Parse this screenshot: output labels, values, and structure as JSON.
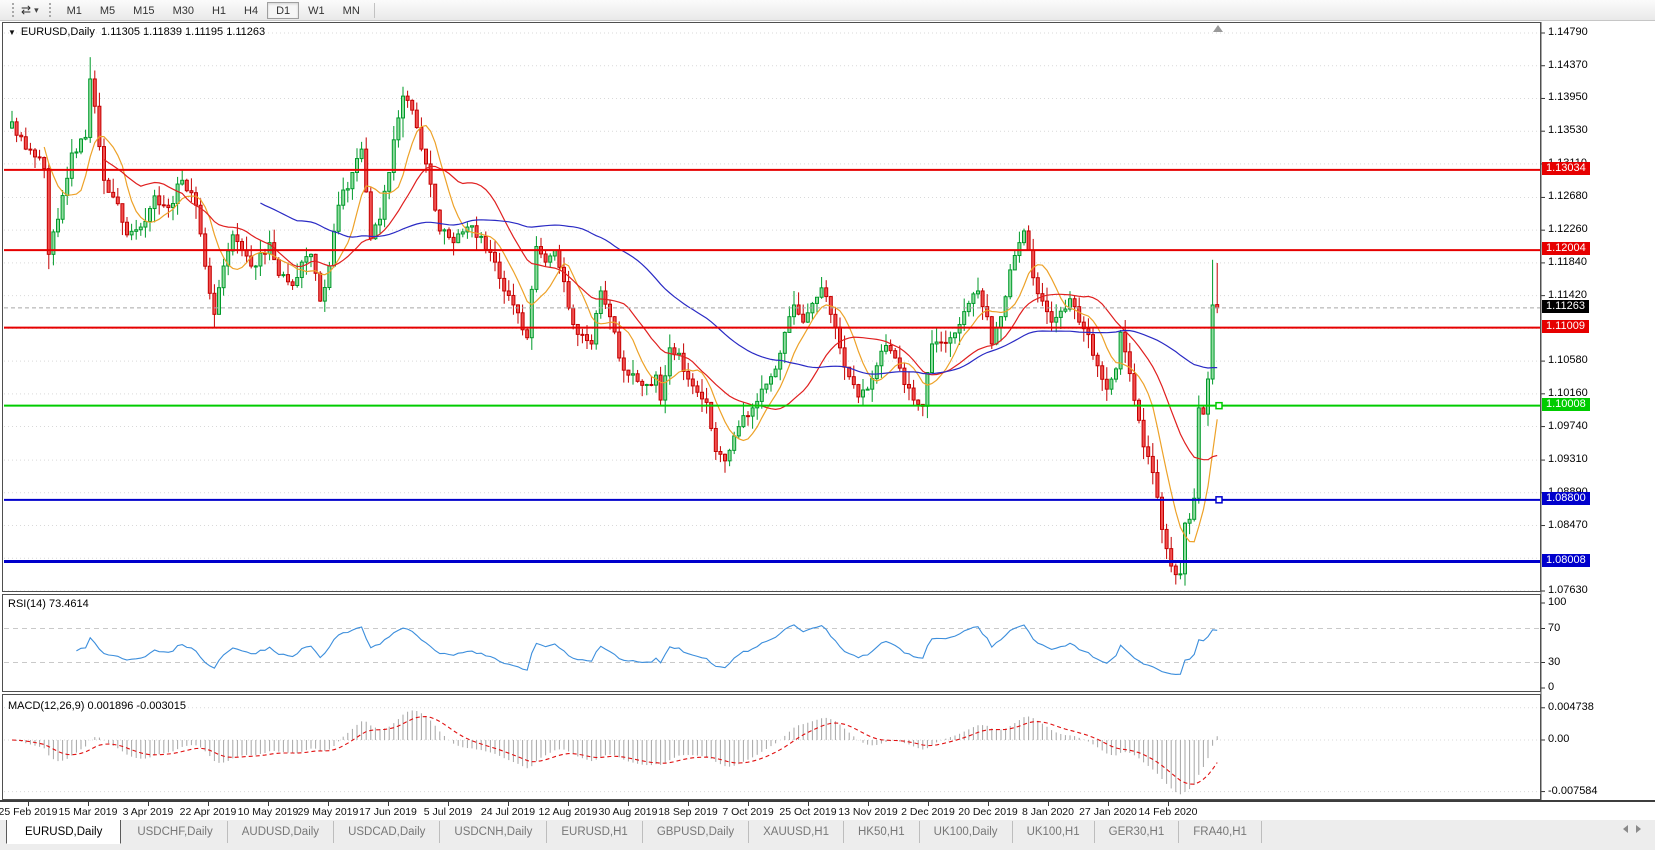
{
  "toolbar": {
    "timeframes": [
      "M1",
      "M5",
      "M15",
      "M30",
      "H1",
      "H4",
      "D1",
      "W1",
      "MN"
    ],
    "active_timeframe": "D1",
    "chart_mode_glyph": "⇄",
    "caret_glyph": "▾"
  },
  "chart": {
    "collapse_glyph": "▼",
    "title_symbol": "EURUSD,Daily",
    "title_ohlc": "1.11305 1.11839 1.11195 1.11263",
    "y_max": 1.1479,
    "y_min": 1.0763,
    "y_ticks": [
      "1.14790",
      "1.14370",
      "1.13950",
      "1.13530",
      "1.13110",
      "1.12680",
      "1.12260",
      "1.11840",
      "1.11420",
      "1.10580",
      "1.10160",
      "1.09740",
      "1.09310",
      "1.08890",
      "1.08470",
      "1.07630"
    ],
    "grid_prices": [
      1.1479,
      1.1437,
      1.1395,
      1.1353,
      1.1311,
      1.1268,
      1.1226,
      1.1184,
      1.1142,
      1.11,
      1.1058,
      1.1016,
      1.0974,
      1.0931,
      1.0889,
      1.0847,
      1.0805,
      1.0763
    ],
    "hlines": [
      {
        "price": 1.13034,
        "label": "1.13034",
        "color": "#e60000",
        "width": 2,
        "dash": null,
        "label_bg": "#e60000",
        "label_fg": "#ffffff",
        "marker": false
      },
      {
        "price": 1.12004,
        "label": "1.12004",
        "color": "#e60000",
        "width": 2,
        "dash": null,
        "label_bg": "#e60000",
        "label_fg": "#ffffff",
        "marker": false
      },
      {
        "price": 1.11263,
        "label": "1.11263",
        "color": "#a8a8a8",
        "width": 1,
        "dash": "4 3",
        "label_bg": "#000000",
        "label_fg": "#ffffff",
        "marker": false
      },
      {
        "price": 1.11009,
        "label": "1.11009",
        "color": "#e60000",
        "width": 2,
        "dash": null,
        "label_bg": "#e60000",
        "label_fg": "#ffffff",
        "marker": false
      },
      {
        "price": 1.10008,
        "label": "1.10008",
        "color": "#00cc00",
        "width": 2,
        "dash": null,
        "label_bg": "#00cc00",
        "label_fg": "#ffffff",
        "marker": true
      },
      {
        "price": 1.088,
        "label": "1.08800",
        "color": "#0000cc",
        "width": 2,
        "dash": null,
        "label_bg": "#0000cc",
        "label_fg": "#ffffff",
        "marker": true
      },
      {
        "price": 1.08008,
        "label": "1.08008",
        "color": "#0000cc",
        "width": 3,
        "dash": null,
        "label_bg": "#0000cc",
        "label_fg": "#ffffff",
        "marker": false
      }
    ],
    "x_labels": [
      "25 Feb 2019",
      "15 Mar 2019",
      "3 Apr 2019",
      "22 Apr 2019",
      "10 May 2019",
      "29 May 2019",
      "17 Jun 2019",
      "5 Jul 2019",
      "24 Jul 2019",
      "12 Aug 2019",
      "30 Aug 2019",
      "18 Sep 2019",
      "7 Oct 2019",
      "25 Oct 2019",
      "13 Nov 2019",
      "2 Dec 2019",
      "20 Dec 2019",
      "8 Jan 2020",
      "27 Jan 2020",
      "14 Feb 2020"
    ],
    "colors": {
      "grid": "#d9d9d9",
      "up_stroke": "#009a2a",
      "up_fill": "#8fdc9f",
      "down_stroke": "#c40000",
      "down_fill": "#f25050",
      "ma_fast": "#eda229",
      "ma_mid": "#e02020",
      "ma_slow": "#2a2ac4"
    }
  },
  "rsi": {
    "label": "RSI(14) 73.4614",
    "period": 14,
    "value": 73.4614,
    "ticks": [
      {
        "v": 100,
        "t": "100"
      },
      {
        "v": 70,
        "t": "70"
      },
      {
        "v": 30,
        "t": "30"
      },
      {
        "v": 0,
        "t": "0"
      }
    ],
    "levels": [
      70,
      30
    ],
    "line_color": "#3c8edc",
    "level_color": "#c9c9c9"
  },
  "macd": {
    "label": "MACD(12,26,9) 0.001896 -0.003015",
    "fast": 12,
    "slow": 26,
    "signal": 9,
    "value_main": 0.001896,
    "value_signal": -0.003015,
    "ticks": [
      {
        "v": 0.004738,
        "t": "0.004738"
      },
      {
        "v": 0,
        "t": "0.00"
      },
      {
        "v": -0.007584,
        "t": "-0.007584"
      }
    ],
    "hist_color": "#a6a6a6",
    "signal_color": "#e01010"
  },
  "tabs": {
    "items": [
      "EURUSD,Daily",
      "USDCHF,Daily",
      "AUDUSD,Daily",
      "USDCAD,Daily",
      "USDCNH,Daily",
      "EURUSD,H1",
      "GBPUSD,Daily",
      "XAUUSD,H1",
      "HK50,H1",
      "UK100,Daily",
      "UK100,H1",
      "GER30,H1",
      "FRA40,H1"
    ],
    "active": "EURUSD,Daily"
  },
  "chart_data": {
    "type": "candlestick",
    "symbol": "EURUSD",
    "timeframe": "Daily",
    "bars": 263,
    "x_range_labels": [
      "25 Feb 2019",
      "14 Feb 2020"
    ],
    "y_axis_range": [
      1.0763,
      1.1479
    ],
    "current_bar": {
      "open": 1.11305,
      "high": 1.11839,
      "low": 1.11195,
      "close": 1.11263
    },
    "levels": [
      1.13034,
      1.12004,
      1.11009,
      1.10008,
      1.088,
      1.08008
    ],
    "close_anchors": [
      [
        0,
        1.1365
      ],
      [
        3,
        1.133
      ],
      [
        5,
        1.132
      ],
      [
        7,
        1.1305
      ],
      [
        8,
        1.1195
      ],
      [
        10,
        1.124
      ],
      [
        13,
        1.1325
      ],
      [
        16,
        1.1345
      ],
      [
        17,
        1.142
      ],
      [
        18,
        1.1385
      ],
      [
        20,
        1.129
      ],
      [
        23,
        1.126
      ],
      [
        25,
        1.122
      ],
      [
        28,
        1.123
      ],
      [
        31,
        1.127
      ],
      [
        34,
        1.1255
      ],
      [
        37,
        1.129
      ],
      [
        40,
        1.1258
      ],
      [
        43,
        1.1145
      ],
      [
        44,
        1.1118
      ],
      [
        46,
        1.118
      ],
      [
        48,
        1.122
      ],
      [
        50,
        1.12
      ],
      [
        53,
        1.118
      ],
      [
        56,
        1.121
      ],
      [
        58,
        1.1168
      ],
      [
        61,
        1.1155
      ],
      [
        63,
        1.1185
      ],
      [
        65,
        1.1195
      ],
      [
        67,
        1.1135
      ],
      [
        69,
        1.118
      ],
      [
        71,
        1.1258
      ],
      [
        74,
        1.13
      ],
      [
        76,
        1.133
      ],
      [
        78,
        1.1215
      ],
      [
        80,
        1.124
      ],
      [
        82,
        1.13
      ],
      [
        84,
        1.137
      ],
      [
        85,
        1.1398
      ],
      [
        87,
        1.138
      ],
      [
        89,
        1.133
      ],
      [
        91,
        1.1285
      ],
      [
        93,
        1.1225
      ],
      [
        96,
        1.121
      ],
      [
        99,
        1.123
      ],
      [
        102,
        1.1218
      ],
      [
        105,
        1.1185
      ],
      [
        107,
        1.1148
      ],
      [
        110,
        1.112
      ],
      [
        112,
        1.1088
      ],
      [
        113,
        1.115
      ],
      [
        114,
        1.1205
      ],
      [
        116,
        1.1185
      ],
      [
        118,
        1.12
      ],
      [
        120,
        1.116
      ],
      [
        122,
        1.1105
      ],
      [
        124,
        1.1092
      ],
      [
        126,
        1.108
      ],
      [
        128,
        1.1148
      ],
      [
        130,
        1.1115
      ],
      [
        132,
        1.1062
      ],
      [
        134,
        1.104
      ],
      [
        136,
        1.1032
      ],
      [
        138,
        1.1028
      ],
      [
        140,
        1.104
      ],
      [
        141,
        1.1008
      ],
      [
        143,
        1.1075
      ],
      [
        145,
        1.1068
      ],
      [
        147,
        1.1035
      ],
      [
        149,
        1.1018
      ],
      [
        151,
        1.1005
      ],
      [
        153,
        1.0942
      ],
      [
        155,
        1.093
      ],
      [
        157,
        1.0962
      ],
      [
        159,
        1.0988
      ],
      [
        161,
        1.0998
      ],
      [
        163,
        1.1022
      ],
      [
        165,
        1.1038
      ],
      [
        167,
        1.1068
      ],
      [
        169,
        1.1115
      ],
      [
        170,
        1.113
      ],
      [
        172,
        1.1108
      ],
      [
        174,
        1.1132
      ],
      [
        176,
        1.1152
      ],
      [
        178,
        1.1118
      ],
      [
        180,
        1.1075
      ],
      [
        182,
        1.1038
      ],
      [
        184,
        1.1012
      ],
      [
        186,
        1.1022
      ],
      [
        188,
        1.1052
      ],
      [
        190,
        1.1078
      ],
      [
        192,
        1.1062
      ],
      [
        194,
        1.1028
      ],
      [
        196,
        1.1008
      ],
      [
        198,
        1.1
      ],
      [
        200,
        1.108
      ],
      [
        202,
        1.1082
      ],
      [
        204,
        1.1088
      ],
      [
        206,
        1.1105
      ],
      [
        208,
        1.1132
      ],
      [
        210,
        1.1148
      ],
      [
        212,
        1.1115
      ],
      [
        213,
        1.108
      ],
      [
        215,
        1.1115
      ],
      [
        217,
        1.1175
      ],
      [
        219,
        1.121
      ],
      [
        220,
        1.1225
      ],
      [
        222,
        1.1165
      ],
      [
        224,
        1.1135
      ],
      [
        226,
        1.1108
      ],
      [
        228,
        1.1122
      ],
      [
        230,
        1.1138
      ],
      [
        232,
        1.1108
      ],
      [
        234,
        1.1092
      ],
      [
        236,
        1.1052
      ],
      [
        238,
        1.1022
      ],
      [
        240,
        1.1048
      ],
      [
        241,
        1.1095
      ],
      [
        243,
        1.1042
      ],
      [
        245,
        1.0982
      ],
      [
        246,
        1.0948
      ],
      [
        248,
        1.0915
      ],
      [
        250,
        1.0842
      ],
      [
        252,
        1.0795
      ],
      [
        254,
        1.0785
      ],
      [
        255,
        1.085
      ],
      [
        256,
        1.0855
      ],
      [
        257,
        1.0882
      ],
      [
        258,
        1.0998
      ],
      [
        259,
        1.099
      ],
      [
        260,
        1.1035
      ],
      [
        261,
        1.113
      ],
      [
        262,
        1.11263
      ]
    ],
    "wick_overrides": {
      "8": [
        1.1312,
        1.1176
      ],
      "17": [
        1.1448,
        1.1338
      ],
      "85": [
        1.141,
        1.1345
      ],
      "254": [
        1.0802,
        1.0778
      ],
      "261": [
        1.1188,
        1.1028
      ],
      "262": [
        1.11839,
        1.11195
      ]
    },
    "moving_averages": [
      {
        "period": 8,
        "color_key": "ma_fast"
      },
      {
        "period": 21,
        "color_key": "ma_mid"
      },
      {
        "period": 55,
        "color_key": "ma_slow"
      }
    ]
  }
}
